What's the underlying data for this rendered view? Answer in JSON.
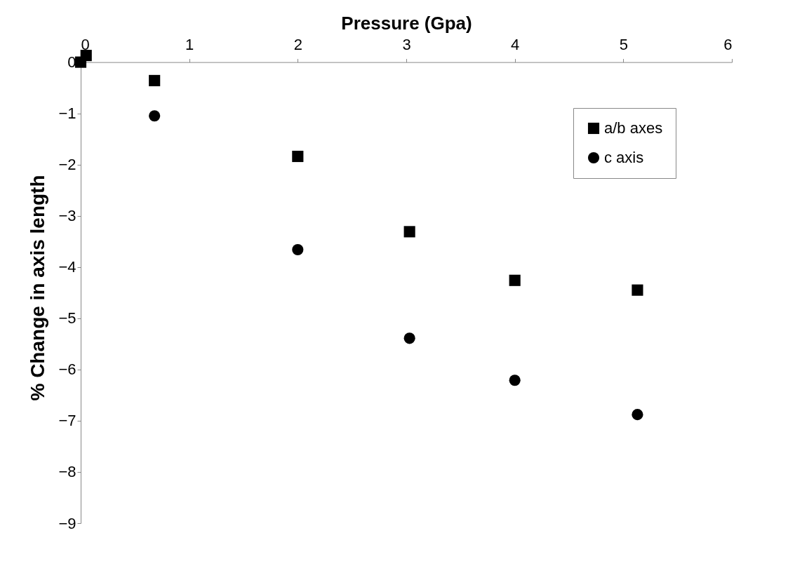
{
  "chart_data": {
    "type": "scatter",
    "xlabel": "Pressure (Gpa)",
    "ylabel": "% Change in axis length",
    "xlim": [
      0,
      6
    ],
    "xticks": [
      0,
      1,
      2,
      3,
      4,
      5,
      6
    ],
    "ylim": [
      -9,
      0.2
    ],
    "yticks": [
      -9,
      -8,
      -7,
      -6,
      -5,
      -4,
      -3,
      -2,
      -1,
      0
    ],
    "grid": false,
    "legend": "top right",
    "series": [
      {
        "name": "a/b axes",
        "color": "#000000",
        "marker": "square",
        "x": [
          0,
          0.05,
          0.68,
          2.0,
          3.03,
          4.0,
          5.13
        ],
        "values": [
          0,
          0.13,
          -0.36,
          -1.84,
          -3.31,
          -4.26,
          -4.45
        ]
      },
      {
        "name": "c axis",
        "color": "#000000",
        "marker": "circle",
        "x": [
          0.68,
          2.0,
          3.03,
          4.0,
          5.13
        ],
        "values": [
          -1.05,
          -3.66,
          -5.39,
          -6.21,
          -6.88
        ]
      }
    ]
  }
}
